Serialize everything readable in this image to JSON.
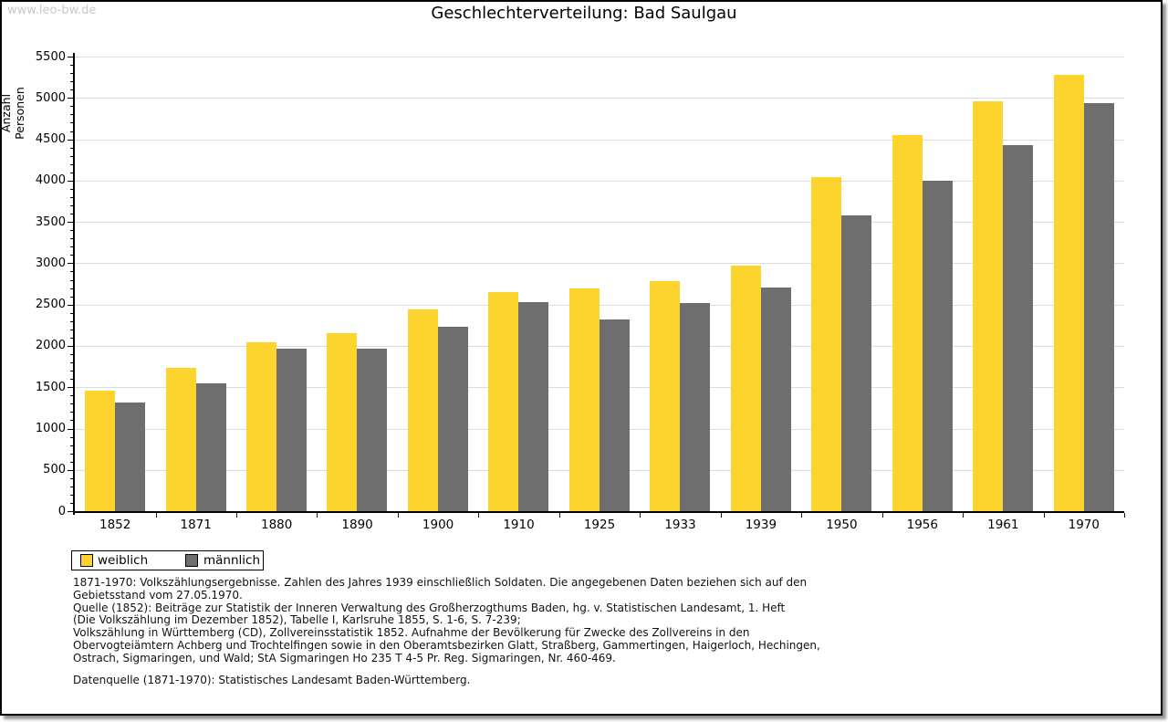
{
  "watermark": "www.leo-bw.de",
  "title": "Geschlechterverteilung: Bad Saulgau",
  "colors": {
    "weiblich": "#fcd42d",
    "maennlich": "#6e6e6e",
    "gridline": "#dcdcdc",
    "axis": "#000000",
    "watermark": "#c8c8c8"
  },
  "chart_data": {
    "type": "bar",
    "title": "Geschlechterverteilung: Bad Saulgau",
    "xlabel": "",
    "ylabel": "Anzahl Personen",
    "ylim": [
      0,
      5500
    ],
    "ytick_step": 500,
    "yminor_step": 100,
    "grid": true,
    "legend_position": "bottom-left",
    "categories": [
      "1852",
      "1871",
      "1880",
      "1890",
      "1900",
      "1910",
      "1925",
      "1933",
      "1939",
      "1950",
      "1956",
      "1961",
      "1970"
    ],
    "series": [
      {
        "name": "weiblich",
        "color": "#fcd42d",
        "values": [
          1460,
          1730,
          2040,
          2150,
          2440,
          2650,
          2690,
          2780,
          2970,
          4040,
          4550,
          4960,
          5280
        ]
      },
      {
        "name": "männlich",
        "color": "#6e6e6e",
        "values": [
          1310,
          1550,
          1970,
          1970,
          2230,
          2530,
          2320,
          2520,
          2710,
          3580,
          4000,
          4430,
          4940
        ]
      }
    ]
  },
  "footnotes": {
    "lines": [
      "1871-1970: Volkszählungsergebnisse. Zahlen des Jahres 1939 einschließlich Soldaten. Die angegebenen Daten beziehen sich auf den",
      "Gebietsstand vom 27.05.1970.",
      "Quelle (1852): Beiträge zur Statistik der Inneren Verwaltung des Großherzogthums Baden, hg. v. Statistischen Landesamt, 1. Heft",
      "(Die Volkszählung im Dezember 1852), Tabelle I, Karlsruhe 1855, S. 1-6, S. 7-239;",
      "Volkszählung in Württemberg (CD), Zollvereinsstatistik 1852. Aufnahme der Bevölkerung für Zwecke des Zollvereins in den",
      "Obervogteiämtern Achberg und Trochtelfingen sowie in den Oberamtsbezirken Glatt, Straßberg, Gammertingen, Haigerloch, Hechingen,",
      "Ostrach, Sigmaringen, und Wald; StA Sigmaringen Ho 235 T 4-5 Pr. Reg. Sigmaringen, Nr. 460-469."
    ],
    "datasource": "Datenquelle (1871-1970): Statistisches Landesamt Baden-Württemberg."
  }
}
